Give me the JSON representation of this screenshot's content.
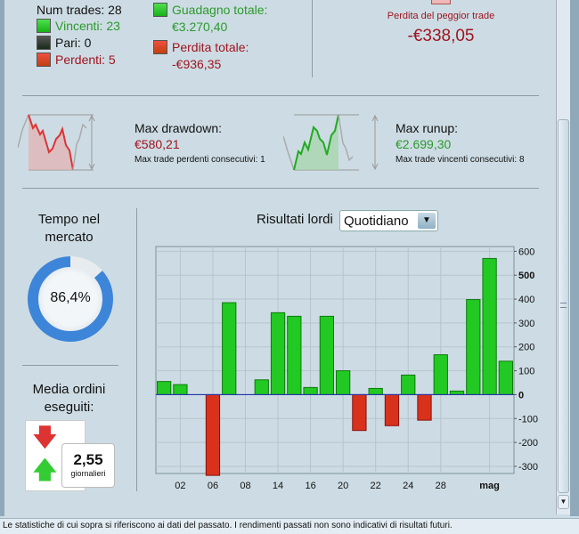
{
  "summary": {
    "num_trades": "Num trades: 28",
    "wins": "Vincenti: 23",
    "even": "Pari: 0",
    "losses": "Perdenti: 5",
    "total_gain_label": "Guadagno totale:",
    "total_gain": "€3.270,40",
    "total_loss_label": "Perdita totale:",
    "total_loss": "-€936,35",
    "worst_trade_label": "Perdita del peggior trade",
    "worst_trade": "-€338,05"
  },
  "drawdown": {
    "label": "Max drawdown:",
    "value": "€580,21",
    "consec": "Max trade perdenti consecutivi:  1"
  },
  "runup": {
    "label": "Max runup:",
    "value": "€2.699,30",
    "consec": "Max trade vincenti consecutivi: 8"
  },
  "market_time": {
    "title1": "Tempo nel",
    "title2": "mercato",
    "value": "86,4%",
    "fraction": 0.864
  },
  "orders": {
    "title1": "Media ordini",
    "title2": "eseguiti:",
    "value": "2,55",
    "unit": "giornalieri"
  },
  "chart_header": {
    "label": "Risultati lordi",
    "period": "Quotidiano"
  },
  "colors": {
    "win": "#22c922",
    "loss": "#d8321c",
    "ring": "#3d85d8"
  },
  "chart_data": {
    "type": "bar",
    "title": "Risultati lordi",
    "ylim": [
      -330,
      620
    ],
    "values": [
      55,
      42,
      0,
      -338,
      385,
      0,
      62,
      343,
      328,
      30,
      328,
      100,
      -150,
      26,
      -130,
      82,
      -107,
      167,
      15,
      398,
      570,
      140
    ],
    "yticks": [
      600,
      500,
      400,
      300,
      200,
      100,
      0,
      -100,
      -200,
      -300
    ],
    "xticks": [
      {
        "label": "02",
        "index": 1
      },
      {
        "label": "06",
        "index": 3
      },
      {
        "label": "08",
        "index": 5
      },
      {
        "label": "14",
        "index": 7
      },
      {
        "label": "16",
        "index": 9
      },
      {
        "label": "20",
        "index": 11
      },
      {
        "label": "22",
        "index": 13
      },
      {
        "label": "24",
        "index": 15
      },
      {
        "label": "28",
        "index": 17
      },
      {
        "label": "mag",
        "index": 20
      }
    ]
  },
  "status": "Le statistiche di cui sopra si riferiscono ai dati del passato. I rendimenti passati non sono indicativi di risultati futuri."
}
